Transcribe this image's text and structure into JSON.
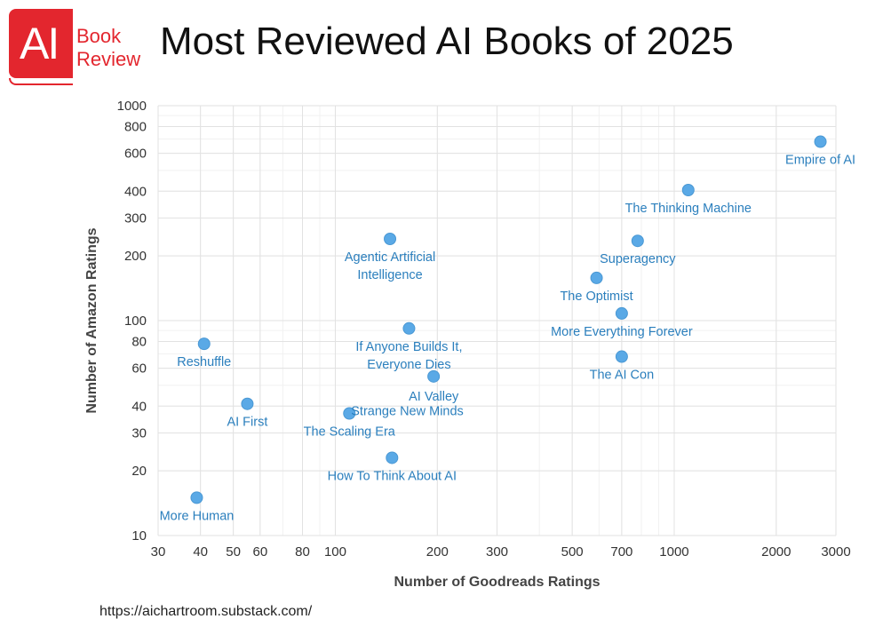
{
  "brand": {
    "logo_mark": "AI",
    "logo_line1": "Book",
    "logo_line2": "Review",
    "color": "#e3262e"
  },
  "title": "Most Reviewed AI Books of 2025",
  "footer_url": "https://aichartroom.substack.com/",
  "chart_data": {
    "type": "scatter",
    "title": "Most Reviewed AI Books of 2025",
    "xlabel": "Number of Goodreads Ratings",
    "ylabel": "Number of Amazon Ratings",
    "x_scale": "log",
    "y_scale": "log",
    "xlim": [
      30,
      3000
    ],
    "ylim": [
      10,
      1000
    ],
    "grid": true,
    "point_color": "#5aa9e6",
    "label_color": "#2b7fbd",
    "x_ticks": [
      30,
      40,
      50,
      60,
      80,
      100,
      200,
      300,
      500,
      700,
      1000,
      2000,
      3000
    ],
    "x_tick_labels": [
      "30",
      "40",
      "50",
      "60",
      "80",
      "100",
      "200",
      "300",
      "500",
      "700",
      "1000",
      "2000",
      "3000"
    ],
    "y_ticks": [
      10,
      20,
      30,
      40,
      60,
      80,
      100,
      200,
      300,
      400,
      600,
      800,
      1000
    ],
    "y_tick_labels": [
      "10",
      "20",
      "30",
      "40",
      "60",
      "80",
      "100",
      "200",
      "300",
      "400",
      "600",
      "800",
      "1000"
    ],
    "points": [
      {
        "label": [
          "Empire of AI"
        ],
        "x": 2700,
        "y": 680,
        "anchor": "below"
      },
      {
        "label": [
          "The Thinking Machine"
        ],
        "x": 1100,
        "y": 405,
        "anchor": "below"
      },
      {
        "label": [
          "Superagency"
        ],
        "x": 780,
        "y": 235,
        "anchor": "below"
      },
      {
        "label": [
          "The Optimist"
        ],
        "x": 590,
        "y": 158,
        "anchor": "below"
      },
      {
        "label": [
          "More Everything Forever"
        ],
        "x": 700,
        "y": 108,
        "anchor": "below"
      },
      {
        "label": [
          "The AI Con"
        ],
        "x": 700,
        "y": 68,
        "anchor": "below"
      },
      {
        "label": [
          "Agentic Artificial",
          "Intelligence"
        ],
        "x": 145,
        "y": 240,
        "anchor": "below"
      },
      {
        "label": [
          "If Anyone Builds It,",
          "Everyone Dies"
        ],
        "x": 165,
        "y": 92,
        "anchor": "below"
      },
      {
        "label": [
          "Reshuffle"
        ],
        "x": 41,
        "y": 78,
        "anchor": "below"
      },
      {
        "label": [
          "AI Valley"
        ],
        "x": 195,
        "y": 55,
        "anchor": "below-left"
      },
      {
        "label": [
          "AI First"
        ],
        "x": 55,
        "y": 41,
        "anchor": "below"
      },
      {
        "label": [
          "Strange New Minds"
        ],
        "x": 110,
        "y": 37,
        "anchor": "right"
      },
      {
        "label": [
          "The Scaling Era"
        ],
        "x": 110,
        "y": 37,
        "anchor": "below"
      },
      {
        "label": [
          "How To Think About AI"
        ],
        "x": 147,
        "y": 23,
        "anchor": "below"
      },
      {
        "label": [
          "More Human"
        ],
        "x": 39,
        "y": 15,
        "anchor": "below"
      }
    ]
  }
}
